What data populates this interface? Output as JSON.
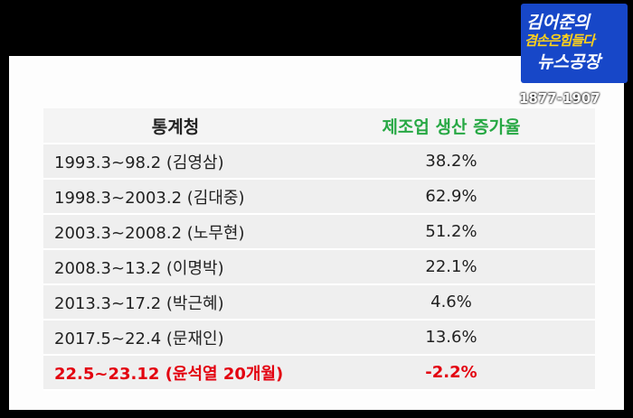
{
  "logo": {
    "line1": "김어준의",
    "line2": "겸손은힘들다",
    "line3": "뉴스공장",
    "phone": "1877-1907"
  },
  "table": {
    "header": [
      "통계청",
      "제조업 생산 증가율"
    ],
    "rows": [
      [
        "1993.3~98.2 (김영삼)",
        "38.2%"
      ],
      [
        "1998.3~2003.2 (김대중)",
        "62.9%"
      ],
      [
        "2003.3~2008.2 (노무현)",
        "51.2%"
      ],
      [
        "2008.3~13.2 (이명박)",
        "22.1%"
      ],
      [
        "2013.3~17.2 (박근혜)",
        "4.6%"
      ],
      [
        "2017.5~22.4 (문재인)",
        "13.6%"
      ],
      [
        "22.5~23.12 (윤석열 20개월)",
        "-2.2%"
      ]
    ],
    "highlight_row": 6
  }
}
